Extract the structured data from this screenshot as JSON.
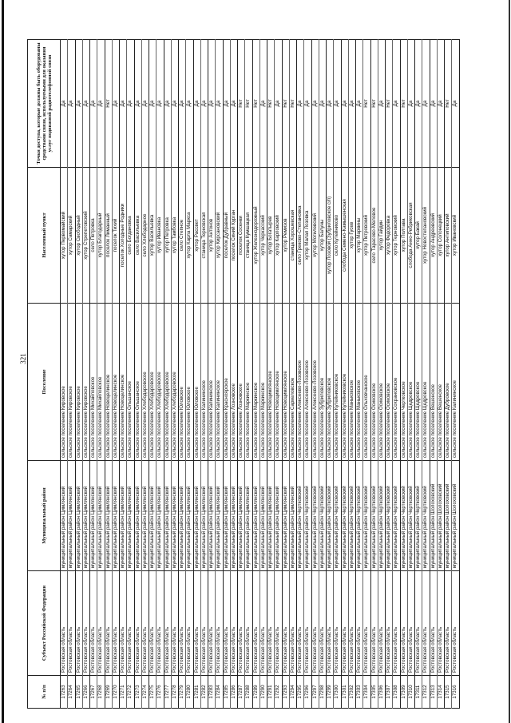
{
  "page_number": "321",
  "headers": [
    "№ п/п",
    "Субъект Российской Федерации",
    "Муниципальный район",
    "Поселение",
    "Населенный пункт",
    "Точки доступа, которые должны быть оборудованы средствами связи, используемыми для оказания услуг подвижной радиотелефонной связи"
  ],
  "rows": [
    [
      "17263",
      "Ростовская область",
      "муниципальный район Цимлянский",
      "сельское поселение Кировское",
      "хутор Первомайский",
      "Да"
    ],
    [
      "17264",
      "Ростовская область",
      "муниципальный район Цимлянский",
      "сельское поселение Кировское",
      "хутор Самарский",
      "Да"
    ],
    [
      "17265",
      "Ростовская область",
      "муниципальный район Цимлянский",
      "сельское поселение Кировское",
      "хутор Свободный",
      "Да"
    ],
    [
      "17266",
      "Ростовская область",
      "муниципальный район Цимлянский",
      "сельское поселение Кировское",
      "хутор Стрепетовский",
      "Да"
    ],
    [
      "17267",
      "Ростовская область",
      "муниципальный район Цимлянский",
      "сельское поселение Михайловское",
      "село Петровка",
      "Да"
    ],
    [
      "17268",
      "Ростовская область",
      "муниципальный район Цимлянский",
      "сельское поселение Михайловское",
      "хутор Благодарный",
      "Да"
    ],
    [
      "17269",
      "Ростовская область",
      "муниципальный район Цимлянский",
      "сельское поселение Новоцелинское",
      "поселок Лиманный",
      "Нет"
    ],
    [
      "17270",
      "Ростовская область",
      "муниципальный район Цимлянский",
      "сельское поселение Новоцелинское",
      "поселок Тихий",
      "Да"
    ],
    [
      "17271",
      "Ростовская область",
      "муниципальный район Цимлянский",
      "сельское поселение Новоцелинское",
      "поселок Холодные Родники",
      "Да"
    ],
    [
      "17272",
      "Ростовская область",
      "муниципальный район Цимлянский",
      "сельское поселение Ольшанское",
      "село Богдановка",
      "Да"
    ],
    [
      "17273",
      "Ростовская область",
      "муниципальный район Цимлянский",
      "сельское поселение Ольшанское",
      "село Васильевка",
      "Да"
    ],
    [
      "17274",
      "Ростовская область",
      "муниципальный район Цимлянский",
      "сельское поселение Хлебодаровское",
      "село Хлебодарное",
      "Да"
    ],
    [
      "17275",
      "Ростовская область",
      "муниципальный район Цимлянский",
      "сельское поселение Хлебодаровское",
      "хутор Васильевка",
      "Да"
    ],
    [
      "17276",
      "Ростовская область",
      "муниципальный район Цимлянский",
      "сельское поселение Хлебодаровское",
      "хутор Ивановка",
      "Да"
    ],
    [
      "17277",
      "Ростовская область",
      "муниципальный район Цимлянский",
      "сельское поселение Хлебодаровское",
      "хутор Петровка",
      "Да"
    ],
    [
      "17278",
      "Ростовская область",
      "муниципальный район Цимлянский",
      "сельское поселение Хлебодаровское",
      "хутор Тамбовка",
      "Да"
    ],
    [
      "17279",
      "Ростовская область",
      "муниципальный район Цимлянский",
      "сельское поселение Юловское",
      "село Степное",
      "Да"
    ],
    [
      "17280",
      "Ростовская область",
      "муниципальный район Цимлянский",
      "сельское поселение Юловское",
      "хутор Карла Маркса",
      "Да"
    ],
    [
      "17281",
      "Ростовская область",
      "муниципальный район Цимлянский",
      "сельское поселение Юловское",
      "хутор Рассвет",
      "Да"
    ],
    [
      "17282",
      "Ростовская область",
      "муниципальный район Цимлянский",
      "сельское поселение Калининское",
      "станица Терновская",
      "Да"
    ],
    [
      "17283",
      "Ростовская область",
      "муниципальный район Цимлянский",
      "сельское поселение Калининское",
      "хутор Антонов",
      "Да"
    ],
    [
      "17284",
      "Ростовская область",
      "муниципальный район Цимлянский",
      "сельское поселение Калининское",
      "хутор Кирсановский",
      "Да"
    ],
    [
      "17285",
      "Ростовская область",
      "муниципальный район Цимлянский",
      "сельское поселение Красноярское",
      "поселок Дубравный",
      "Да"
    ],
    [
      "17286",
      "Ростовская область",
      "муниципальный район Цимлянский",
      "сельское поселение Лозновское",
      "поселок Синий Курган",
      "Да"
    ],
    [
      "17287",
      "Ростовская область",
      "муниципальный район Цимлянский",
      "сельское поселение Лозновское",
      "поселок Сосенки",
      "Нет"
    ],
    [
      "17288",
      "Ростовская область",
      "муниципальный район Цимлянский",
      "сельское поселение Маркинское",
      "станица Кумшацкая",
      "Нет"
    ],
    [
      "17289",
      "Ростовская область",
      "муниципальный район Цимлянский",
      "сельское поселение Маркинское",
      "хутор Железнодорожный",
      "Нет"
    ],
    [
      "17290",
      "Ростовская область",
      "муниципальный район Цимлянский",
      "сельское поселение Маркинское",
      "хутор Черкасский",
      "Да"
    ],
    [
      "17291",
      "Ростовская область",
      "муниципальный район Цимлянский",
      "сельское поселение Новоцимлянское",
      "хутор Богатырев",
      "Нет"
    ],
    [
      "17292",
      "Ростовская область",
      "муниципальный район Цимлянский",
      "сельское поселение Новоцимлянское",
      "хутор Карповский",
      "Да"
    ],
    [
      "17293",
      "Ростовская область",
      "муниципальный район Цимлянский",
      "сельское поселение Новоцимлянское",
      "хутор Ремизов",
      "Нет"
    ],
    [
      "17294",
      "Ростовская область",
      "муниципальный район Цимлянский",
      "сельское поселение Саркеловское",
      "станица Хорошевская",
      "Нет"
    ],
    [
      "17295",
      "Ростовская область",
      "муниципальный район Чертковский",
      "сельское поселение Алексеево-Лозовское",
      "село Греково-Степановка",
      "Да"
    ],
    [
      "17296",
      "Ростовская область",
      "муниципальный район Чертковский",
      "сельское поселение Алексеево-Лозовское",
      "хутор Малая Лозовка",
      "Да"
    ],
    [
      "17297",
      "Ростовская область",
      "муниципальный район Чертковский",
      "сельское поселение Алексеево-Лозовское",
      "хутор Могилевский",
      "Да"
    ],
    [
      "17298",
      "Ростовская область",
      "муниципальный район Чертковский",
      "сельское поселение Зубриловское",
      "хутор Балуны",
      "Да"
    ],
    [
      "17299",
      "Ростовская область",
      "муниципальный район Чертковский",
      "сельское поселение Зубриловское",
      "хутор Лозовой (Зубриловское с/п)",
      "Да"
    ],
    [
      "17300",
      "Ростовская область",
      "муниципальный район Чертковский",
      "сельское поселение Кутейниковское",
      "село Кутейниково",
      "Да"
    ],
    [
      "17301",
      "Ростовская область",
      "муниципальный район Чертковский",
      "сельское поселение Кутейниковское",
      "слобода Семено-Камышенская",
      "Да"
    ],
    [
      "17302",
      "Ростовская область",
      "муниципальный район Чертковский",
      "сельское поселение Маньковское",
      "хутор Гусев",
      "Да"
    ],
    [
      "17303",
      "Ростовская область",
      "муниципальный район Чертковский",
      "сельское поселение Маньковское",
      "хутор Маркины",
      "Да"
    ],
    [
      "17304",
      "Ростовская область",
      "муниципальный район Чертковский",
      "сельское поселение Ольховчанское",
      "хутор Петровский",
      "Нет"
    ],
    [
      "17305",
      "Ростовская область",
      "муниципальный район Чертковский",
      "сельское поселение Осиковское",
      "село Тарасово-Меловое",
      "Нет"
    ],
    [
      "17306",
      "Ростовская область",
      "муниципальный район Чертковский",
      "сельское поселение Осиковское",
      "хутор Гайдин",
      "Да"
    ],
    [
      "17307",
      "Ростовская область",
      "муниципальный район Чертковский",
      "сельское поселение Осиковское",
      "хутор Федоровка",
      "Нет"
    ],
    [
      "17308",
      "Ростовская область",
      "муниципальный район Чертковский",
      "сельское поселение Сохрановское",
      "хутор Терновский",
      "Да"
    ],
    [
      "17309",
      "Ростовская область",
      "муниципальный район Чертковский",
      "сельское поселение Чертковское",
      "хутор Полтава",
      "Нет"
    ],
    [
      "17310",
      "Ростовская область",
      "муниципальный район Чертковский",
      "сельское поселение Щедровское",
      "слобода Анно-Ребриковская",
      "Да"
    ],
    [
      "17311",
      "Ростовская область",
      "муниципальный район Чертковский",
      "сельское поселение Щедровское",
      "хутор Бакай",
      "Да"
    ],
    [
      "17312",
      "Ростовская область",
      "муниципальный район Чертковский",
      "сельское поселение Щедровское",
      "хутор Новостепановский",
      "Да"
    ],
    [
      "17313",
      "Ростовская область",
      "муниципальный район Шолоховский",
      "сельское поселение Вешенское",
      "хутор Андреевский",
      "Да"
    ],
    [
      "17314",
      "Ростовская область",
      "муниципальный район Шолоховский",
      "сельское поселение Вешенское",
      "хутор Солонецкий",
      "Да"
    ],
    [
      "17315",
      "Ростовская область",
      "муниципальный район Шолоховский",
      "сельское поселение Дубровское",
      "хутор Антиповский",
      "Нет"
    ],
    [
      "17316",
      "Ростовская область",
      "муниципальный район Шолоховский",
      "сельское поселение Калининское",
      "хутор Ивановский",
      "Да"
    ]
  ]
}
